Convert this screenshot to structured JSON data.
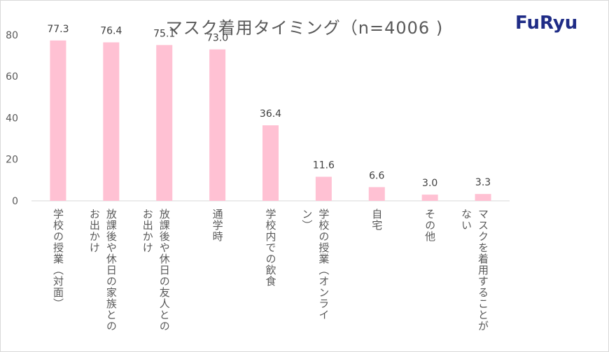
{
  "header": {
    "title": "マスク着用タイミング（n=4006 )",
    "logo_text": "FuRyu"
  },
  "colors": {
    "bar": "#ffc1d3",
    "axis": "#d9d9d9",
    "text": "#595959"
  },
  "chart_data": {
    "type": "bar",
    "title": "マスク着用タイミング（n=4006 )",
    "categories": [
      "学校の授業（対面）",
      "放課後や休日の家族との\nお出かけ",
      "放課後や休日の友人との\nお出かけ",
      "通学時",
      "学校内での飲食",
      "学校の授業（オンライ\nン）",
      "自宅",
      "その他",
      "マスクを着用することが\nない"
    ],
    "values": [
      77.3,
      76.4,
      75.1,
      73.0,
      36.4,
      11.6,
      6.6,
      3.0,
      3.3
    ],
    "value_labels": [
      "77.3",
      "76.4",
      "75.1",
      "73.0",
      "36.4",
      "11.6",
      "6.6",
      "3.0",
      "3.3"
    ],
    "yticks": [
      0,
      20,
      40,
      60,
      80
    ],
    "ylim": [
      0,
      85
    ],
    "grid": false,
    "legend": "none"
  }
}
